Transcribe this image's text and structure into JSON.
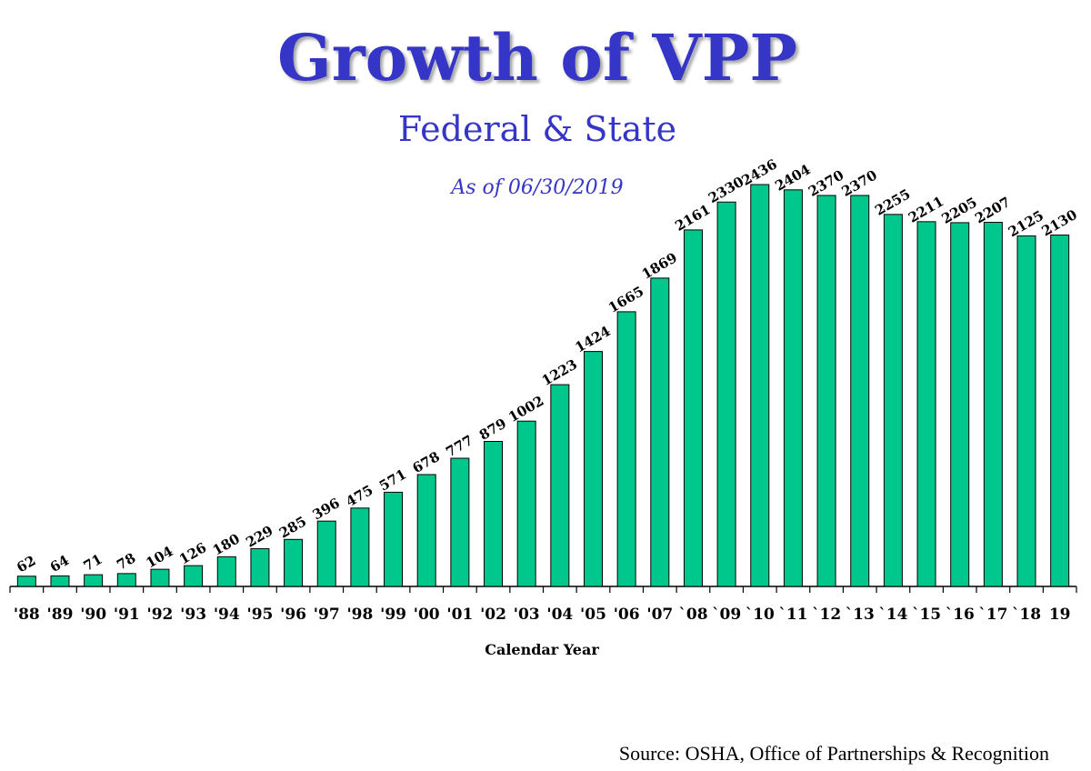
{
  "colors": {
    "title": "#3535c8",
    "bar_fill": "#00c88c",
    "bar_stroke": "#000000"
  },
  "chart_data": {
    "type": "bar",
    "title": "Growth of VPP",
    "subtitle": "Federal & State",
    "annotation": "As of 06/30/2019",
    "xlabel": "Calendar Year",
    "ylabel": "",
    "ylim": [
      0,
      2500
    ],
    "grid": false,
    "categories": [
      "'88",
      "'89",
      "'90",
      "'91",
      "'92",
      "'93",
      "'94",
      "'95",
      "'96",
      "'97",
      "'98",
      "'99",
      "'00",
      "'01",
      "'02",
      "'03",
      "'04",
      "'05",
      "'06",
      "'07",
      "`08",
      "`09",
      "`10",
      "`11",
      "`12",
      "`13",
      "`14",
      "`15",
      "`16",
      "`17",
      "`18",
      "19"
    ],
    "values": [
      62,
      64,
      71,
      78,
      104,
      126,
      180,
      229,
      285,
      396,
      475,
      571,
      678,
      777,
      879,
      1002,
      1223,
      1424,
      1665,
      1869,
      2161,
      2330,
      2436,
      2404,
      2370,
      2370,
      2255,
      2211,
      2205,
      2207,
      2125,
      2130
    ],
    "data_labels": [
      "62",
      "64",
      "71",
      "78",
      "104",
      "126",
      "180",
      "229",
      "285",
      "396",
      "475",
      "571",
      "678",
      "777",
      "879",
      "1002",
      "1223",
      "1424",
      "1665",
      "1869",
      "2161",
      "2330",
      "2436",
      "2404",
      "2370",
      "2370",
      "2255",
      "2211",
      "2205",
      "2207",
      "2125",
      "2130"
    ]
  },
  "source": "Source: OSHA, Office of Partnerships & Recognition"
}
